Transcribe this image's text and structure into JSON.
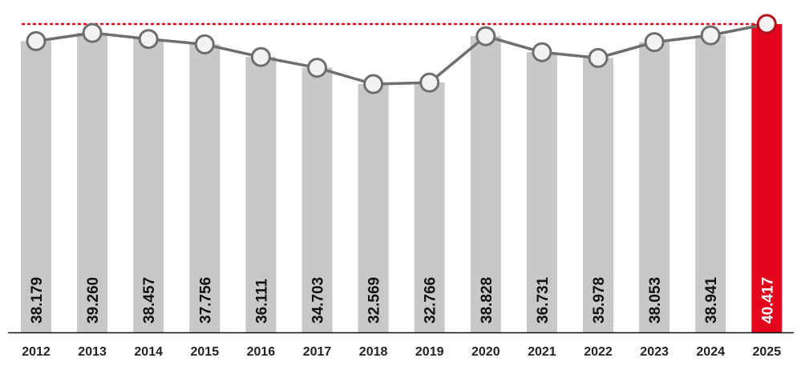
{
  "chart_data": {
    "type": "bar",
    "title": "",
    "xlabel": "",
    "ylabel": "",
    "categories": [
      "2012",
      "2013",
      "2014",
      "2015",
      "2016",
      "2017",
      "2018",
      "2019",
      "2020",
      "2021",
      "2022",
      "2023",
      "2024",
      "2025"
    ],
    "values": [
      38179,
      39260,
      38457,
      37756,
      36111,
      34703,
      32569,
      32766,
      38828,
      36731,
      35978,
      38053,
      38941,
      40417
    ],
    "value_labels": [
      "38.179",
      "39.260",
      "38.457",
      "37.756",
      "36.111",
      "34.703",
      "32.569",
      "32.766",
      "38.828",
      "36.731",
      "35.978",
      "38.053",
      "38.941",
      "40.417"
    ],
    "highlight_index": 13,
    "line_overlay": true,
    "reference_line": {
      "value": 40417,
      "style": "dotted"
    },
    "ylim": [
      0,
      41000
    ],
    "grid": false,
    "legend": "none",
    "colors": {
      "bar": "#c8c8c8",
      "highlight_bar": "#e3051b",
      "line": "#6e6e6e",
      "marker_fill": "#f2f2f2",
      "marker_stroke": "#6e6e6e",
      "highlight_marker_stroke": "#b0101c",
      "reference_line": "#e3051b",
      "label_text": "#111111",
      "highlight_label_text": "#ffffff",
      "axis": "#111111"
    }
  }
}
